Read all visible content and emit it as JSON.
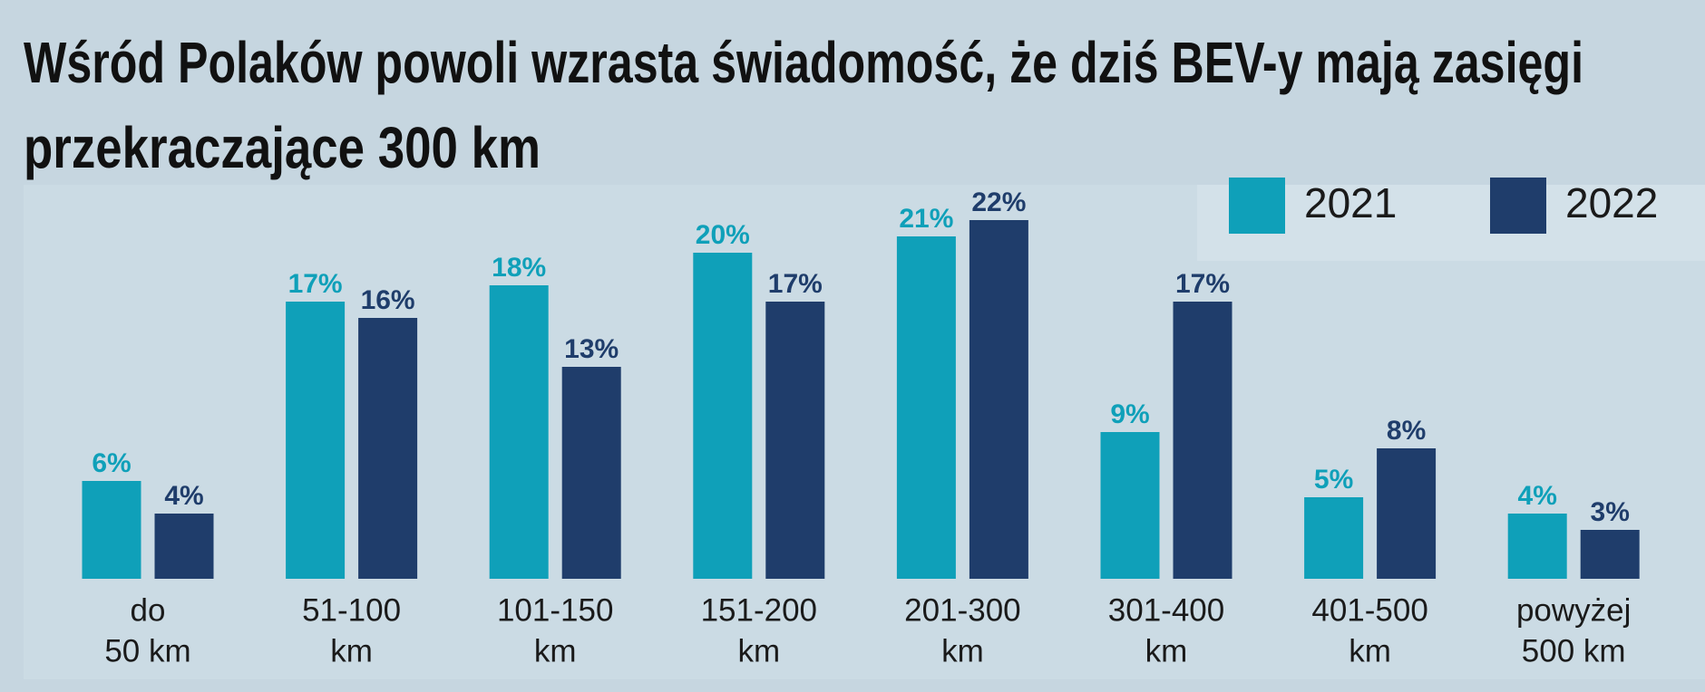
{
  "chart_data": {
    "type": "bar",
    "title": [
      "Wśród Polaków powoli wzrasta świadomość, że dziś BEV-y mają zasięgi",
      "przekraczające 300 km"
    ],
    "categories": [
      [
        "do",
        "50 km"
      ],
      [
        "51-100",
        "km"
      ],
      [
        "101-150",
        "km"
      ],
      [
        "151-200",
        "km"
      ],
      [
        "201-300",
        "km"
      ],
      [
        "301-400",
        "km"
      ],
      [
        "401-500",
        "km"
      ],
      [
        "powyżej",
        "500 km"
      ]
    ],
    "series": [
      {
        "name": "2021",
        "color": "#0fa0b9",
        "values": [
          6,
          17,
          18,
          20,
          21,
          9,
          5,
          4
        ],
        "value_labels": [
          "6%",
          "17%",
          "18%",
          "20%",
          "21%",
          "9%",
          "5%",
          "4%"
        ]
      },
      {
        "name": "2022",
        "color": "#1f3d6b",
        "values": [
          4,
          16,
          13,
          17,
          22,
          17,
          8,
          3
        ],
        "value_labels": [
          "4%",
          "16%",
          "13%",
          "17%",
          "22%",
          "17%",
          "8%",
          "3%"
        ]
      }
    ]
  }
}
